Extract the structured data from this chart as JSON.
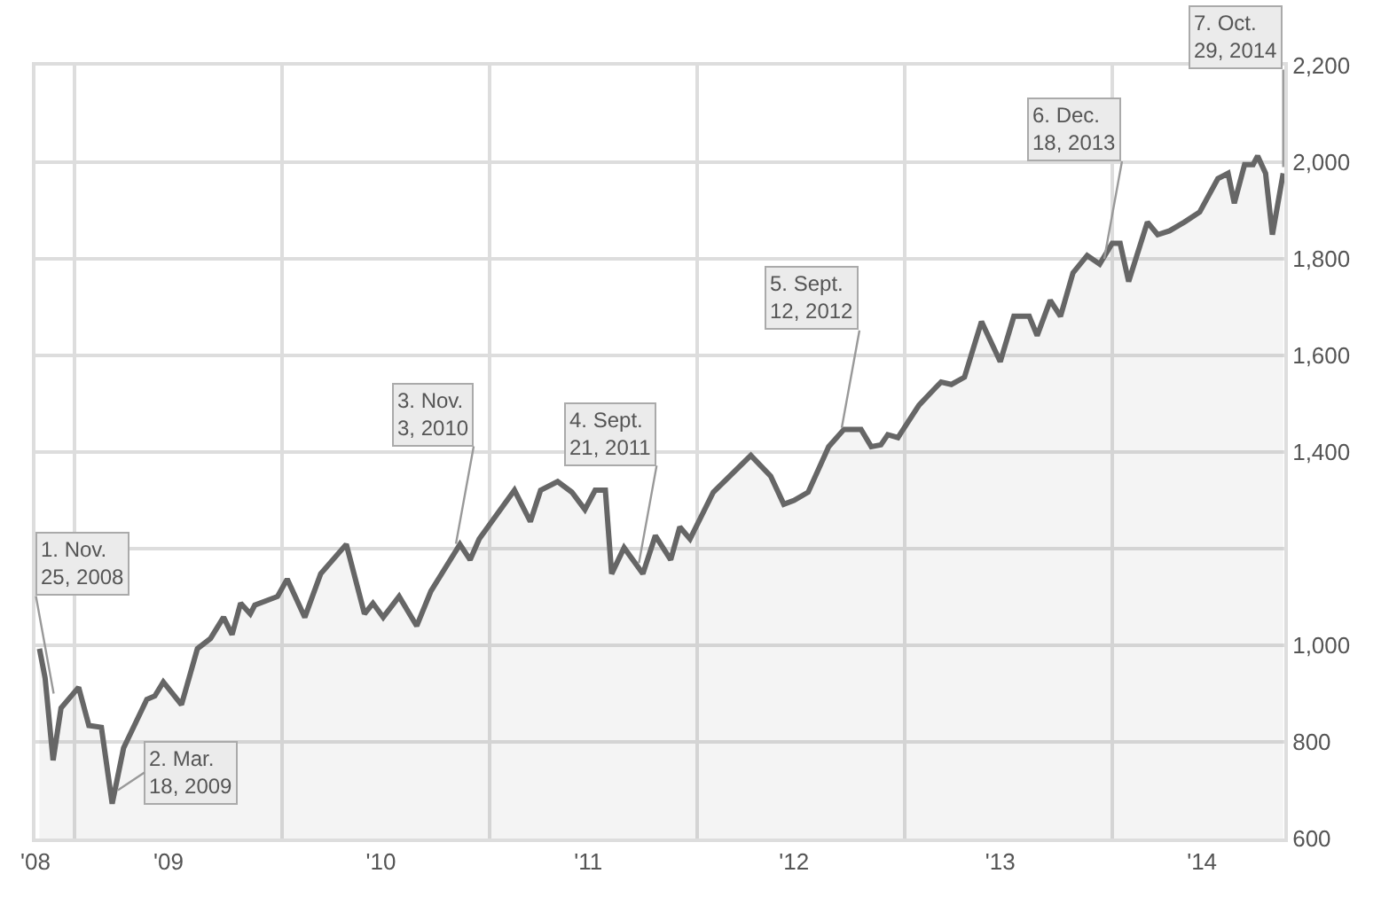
{
  "chart_data": {
    "type": "area",
    "x": [
      "2008-10-31",
      "2008-11-10",
      "2008-11-24",
      "2008-12-08",
      "2009-01-08",
      "2009-01-26",
      "2009-02-17",
      "2009-03-08",
      "2009-03-28",
      "2009-05-08",
      "2009-05-22",
      "2009-06-06",
      "2009-07-08",
      "2009-08-05",
      "2009-08-28",
      "2009-09-20",
      "2009-10-05",
      "2009-10-20",
      "2009-11-06",
      "2009-11-14",
      "2009-12-24",
      "2010-01-10",
      "2010-02-10",
      "2010-03-10",
      "2010-04-24",
      "2010-05-26",
      "2010-06-10",
      "2010-06-28",
      "2010-07-26",
      "2010-08-26",
      "2010-09-20",
      "2010-11-10",
      "2010-11-28",
      "2010-12-14",
      "2011-02-14",
      "2011-03-14",
      "2011-04-01",
      "2011-05-01",
      "2011-05-26",
      "2011-06-18",
      "2011-07-06",
      "2011-07-24",
      "2011-08-04",
      "2011-08-26",
      "2011-09-28",
      "2011-10-20",
      "2011-11-16",
      "2011-12-02",
      "2011-12-20",
      "2012-01-30",
      "2012-04-05",
      "2012-05-10",
      "2012-06-02",
      "2012-06-20",
      "2012-07-15",
      "2012-08-20",
      "2012-09-16",
      "2012-10-16",
      "2012-11-03",
      "2012-11-20",
      "2012-12-02",
      "2012-12-20",
      "2013-01-26",
      "2013-02-24",
      "2013-03-06",
      "2013-03-24",
      "2013-04-16",
      "2013-05-16",
      "2013-06-18",
      "2013-07-12",
      "2013-08-08",
      "2013-08-22",
      "2013-09-14",
      "2013-10-02",
      "2013-10-24",
      "2013-11-18",
      "2013-12-10",
      "2014-01-01",
      "2014-01-15",
      "2014-01-30",
      "2014-03-04",
      "2014-03-22",
      "2014-04-12",
      "2014-05-08",
      "2014-06-04",
      "2014-07-06",
      "2014-07-24",
      "2014-08-04",
      "2014-08-22",
      "2014-09-06",
      "2014-09-14",
      "2014-09-28",
      "2014-10-10",
      "2014-10-29"
    ],
    "series": [
      {
        "color": "#666666",
        "values": [
          993,
          932,
          762,
          870,
          913,
          834,
          830,
          672,
          787,
          888,
          895,
          924,
          877,
          993,
          1014,
          1058,
          1022,
          1087,
          1065,
          1083,
          1101,
          1137,
          1058,
          1148,
          1209,
          1065,
          1087,
          1058,
          1101,
          1040,
          1112,
          1209,
          1177,
          1220,
          1321,
          1256,
          1321,
          1339,
          1317,
          1281,
          1321,
          1321,
          1148,
          1202,
          1148,
          1227,
          1177,
          1245,
          1220,
          1317,
          1393,
          1350,
          1292,
          1300,
          1317,
          1411,
          1447,
          1447,
          1411,
          1415,
          1436,
          1430,
          1497,
          1533,
          1545,
          1540,
          1555,
          1670,
          1587,
          1681,
          1681,
          1641,
          1714,
          1681,
          1771,
          1807,
          1789,
          1832,
          1832,
          1753,
          1876,
          1850,
          1858,
          1876,
          1897,
          1966,
          1977,
          1915,
          1995,
          1995,
          2013,
          1977,
          1850,
          1977
        ]
      }
    ],
    "xlim": [
      "2008-10-24",
      "2014-10-31"
    ],
    "xticks": [
      {
        "value": "2008-10-24",
        "label": "'08"
      },
      {
        "value": "2009-06-15",
        "label": "'09"
      },
      {
        "value": "2010-06-24",
        "label": "'10"
      },
      {
        "value": "2011-06-24",
        "label": "'11"
      },
      {
        "value": "2012-06-20",
        "label": "'12"
      },
      {
        "value": "2013-06-18",
        "label": "'13"
      },
      {
        "value": "2014-06-08",
        "label": "'14"
      },
      {
        "value": "2009-01-01",
        "label": null
      },
      {
        "value": "2010-01-01",
        "label": null
      },
      {
        "value": "2011-01-01",
        "label": null
      },
      {
        "value": "2012-01-01",
        "label": null
      },
      {
        "value": "2013-01-01",
        "label": null
      },
      {
        "value": "2014-01-01",
        "label": null
      }
    ],
    "ylim": [
      600,
      2200
    ],
    "yticks": [
      600,
      800,
      {
        "value": 1000,
        "label": "1,000"
      },
      {
        "value": 1200,
        "label": null
      },
      {
        "value": 1400,
        "label": "1,400"
      },
      {
        "value": 1600,
        "label": "1,600"
      },
      {
        "value": 1800,
        "label": "1,800"
      },
      {
        "value": 2000,
        "label": "2,000"
      },
      {
        "value": 2200,
        "label": "2,200"
      }
    ],
    "grid": true,
    "annotations": [
      {
        "text": "1. Nov.\n25, 2008",
        "x": "2008-11-25",
        "y": 900
      },
      {
        "text": "2. Mar.\n18, 2009",
        "x": "2009-03-18",
        "y": 700
      },
      {
        "text": "3. Nov.\n3, 2010",
        "x": "2010-11-03",
        "y": 1210
      },
      {
        "text": "4. Sept.\n21, 2011",
        "x": "2011-09-21",
        "y": 1170
      },
      {
        "text": "5. Sept.\n12, 2012",
        "x": "2012-09-12",
        "y": 1450
      },
      {
        "text": "6. Dec.\n18, 2013",
        "x": "2013-12-18",
        "y": 1800
      },
      {
        "text": "7. Oct.\n29, 2014",
        "x": "2014-10-29",
        "y": 1990
      }
    ]
  }
}
